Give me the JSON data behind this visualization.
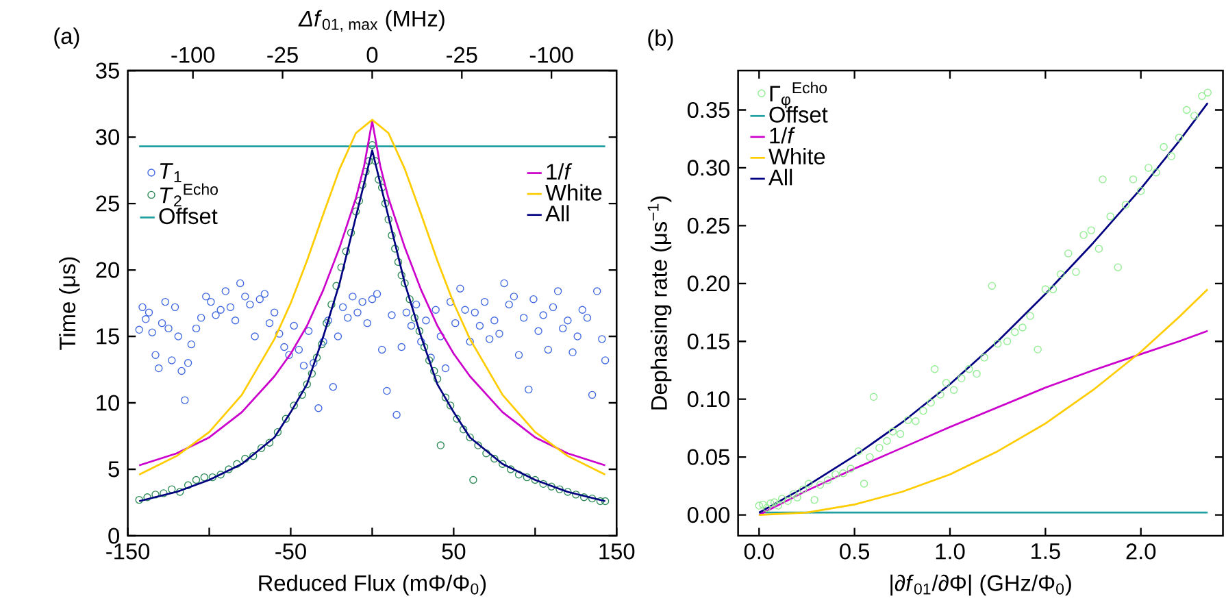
{
  "chart_data": [
    {
      "type": "scatter",
      "annotations": [
        "(a)",
        "-100",
        "-25",
        "0",
        "-25",
        "-100"
      ],
      "xlabel": "Reduced Flux (mΦ/Φ$_{0}$)",
      "ylabel": "Time (μs)",
      "x2label": "*Δf*$_{01, max}$ (MHz)",
      "xlim": [
        -150,
        150
      ],
      "ylim": [
        0,
        35
      ],
      "xticks": [
        -150,
        {
          "value": -100,
          "label": null
        },
        -50,
        {
          "value": 0,
          "label": null
        },
        50,
        {
          "value": 100,
          "label": null
        },
        150
      ],
      "yticks": [
        0,
        5,
        10,
        15,
        20,
        25,
        30,
        35
      ],
      "legend": "top",
      "series": [
        {
          "name": "*T*$_{1}$",
          "color": "#4169e1",
          "x": [
            -143,
            -141,
            -139,
            -137,
            -135,
            -133,
            -131,
            -129,
            -127,
            -125,
            -123,
            -121,
            -119,
            -117,
            -115,
            -113,
            -111,
            -108,
            -105,
            -102,
            -99,
            -96,
            -93,
            -90,
            -87,
            -84,
            -81,
            -78,
            -75,
            -72,
            -69,
            -66,
            -63,
            -60,
            -57,
            -54,
            -51,
            -48,
            -45,
            -42,
            -39,
            -36,
            -33,
            -30,
            -27,
            -24,
            -21,
            -18,
            -15,
            -12,
            -9,
            -6,
            -3,
            0,
            3,
            6,
            9,
            12,
            15,
            18,
            21,
            24,
            27,
            30,
            33,
            36,
            39,
            42,
            45,
            48,
            51,
            54,
            57,
            60,
            63,
            66,
            69,
            72,
            75,
            78,
            81,
            84,
            87,
            90,
            93,
            96,
            99,
            102,
            105,
            108,
            111,
            114,
            117,
            120,
            123,
            126,
            129,
            132,
            135,
            138,
            141,
            143
          ],
          "values": [
            15.5,
            17.2,
            16.3,
            16.8,
            15.3,
            13.6,
            12.6,
            16.0,
            17.6,
            15.6,
            13.2,
            17.2,
            15.0,
            12.4,
            10.2,
            13.0,
            14.4,
            15.6,
            16.4,
            18.0,
            17.6,
            16.6,
            17.0,
            18.4,
            17.2,
            16.2,
            19.0,
            18.0,
            17.4,
            15.0,
            17.8,
            18.2,
            16.0,
            16.8,
            15.2,
            14.2,
            13.6,
            15.8,
            14.0,
            12.8,
            15.4,
            13.0,
            9.6,
            14.6,
            16.2,
            11.2,
            15.0,
            17.2,
            16.4,
            18.0,
            16.8,
            17.6,
            16.0,
            17.8,
            18.2,
            14.0,
            10.9,
            16.6,
            9.1,
            14.2,
            16.8,
            15.8,
            17.4,
            14.6,
            16.2,
            13.4,
            17.0,
            15.0,
            12.6,
            17.6,
            16.0,
            18.6,
            17.0,
            14.6,
            16.8,
            15.8,
            17.6,
            14.8,
            16.2,
            15.2,
            19.0,
            17.4,
            18.0,
            13.6,
            16.4,
            11.0,
            17.8,
            15.4,
            16.6,
            14.0,
            17.2,
            18.4,
            15.6,
            16.2,
            13.8,
            15.0,
            17.0,
            16.4,
            10.6,
            18.4,
            14.8,
            13.2
          ]
        },
        {
          "name": "*T*$_{2}$$^{Echo}$",
          "color": "#2e8b57",
          "x": [
            -143,
            -138,
            -133,
            -128,
            -123,
            -118,
            -113,
            -108,
            -103,
            -98,
            -93,
            -88,
            -83,
            -78,
            -73,
            -68,
            -63,
            -58,
            -53,
            -48,
            -43,
            -40,
            -37,
            -34,
            -31,
            -28,
            -25,
            -22,
            -19,
            -16,
            -13,
            -10,
            -8,
            -6,
            -4,
            -2,
            0,
            2,
            4,
            6,
            8,
            10,
            12,
            14,
            16,
            18,
            20,
            23,
            26,
            29,
            32,
            35,
            38,
            40,
            42,
            45,
            48,
            52,
            56,
            60,
            62,
            65,
            70,
            75,
            80,
            85,
            90,
            95,
            100,
            105,
            110,
            115,
            120,
            125,
            130,
            135,
            140,
            143
          ],
          "values": [
            2.7,
            2.9,
            3.1,
            3.2,
            3.5,
            3.3,
            3.8,
            4.2,
            4.4,
            4.4,
            4.6,
            5.0,
            5.4,
            5.8,
            6.0,
            6.6,
            7.0,
            7.8,
            8.8,
            9.8,
            10.6,
            11.4,
            12.2,
            13.4,
            14.4,
            16.0,
            17.4,
            18.8,
            20.2,
            21.4,
            22.8,
            24.4,
            25.2,
            26.4,
            27.4,
            28.2,
            29.4,
            28.2,
            26.8,
            26.2,
            25.0,
            23.8,
            22.6,
            21.6,
            20.6,
            19.6,
            19.0,
            17.8,
            16.4,
            15.4,
            14.2,
            13.2,
            12.4,
            11.8,
            6.8,
            10.4,
            9.8,
            8.8,
            8.0,
            7.4,
            4.2,
            6.8,
            6.2,
            5.8,
            5.4,
            5.0,
            4.6,
            4.4,
            4.2,
            3.9,
            3.7,
            3.5,
            3.3,
            3.1,
            2.9,
            2.8,
            2.6,
            2.6
          ]
        },
        {
          "name": "Offset",
          "type": "line",
          "color": "#20a0a0",
          "x": [
            -143,
            143
          ],
          "values": [
            29.3,
            29.3
          ]
        },
        {
          "name": "1/*f*",
          "type": "line",
          "color": "#cc00cc",
          "x": [
            -143,
            -120,
            -100,
            -80,
            -60,
            -50,
            -40,
            -30,
            -20,
            -10,
            -5,
            0,
            5,
            10,
            20,
            30,
            40,
            50,
            60,
            80,
            100,
            120,
            143
          ],
          "values": [
            5.3,
            6.2,
            7.4,
            9.3,
            12.0,
            13.7,
            15.8,
            18.5,
            21.7,
            25.4,
            27.8,
            31.2,
            27.8,
            25.4,
            21.7,
            18.5,
            15.8,
            13.7,
            12.0,
            9.3,
            7.4,
            6.2,
            5.3
          ]
        },
        {
          "name": "White",
          "type": "line",
          "color": "#ffcc00",
          "x": [
            -143,
            -120,
            -100,
            -80,
            -60,
            -50,
            -40,
            -30,
            -20,
            -10,
            0,
            10,
            20,
            30,
            40,
            50,
            60,
            80,
            100,
            120,
            143
          ],
          "values": [
            4.6,
            6.0,
            7.8,
            10.6,
            14.8,
            17.5,
            20.7,
            24.2,
            27.6,
            30.3,
            31.3,
            30.3,
            27.6,
            24.2,
            20.7,
            17.5,
            14.8,
            10.6,
            7.8,
            6.0,
            4.6
          ]
        },
        {
          "name": "All",
          "type": "line",
          "color": "#000080",
          "x": [
            -143,
            -120,
            -100,
            -80,
            -60,
            -50,
            -40,
            -30,
            -20,
            -10,
            -5,
            0,
            5,
            10,
            20,
            30,
            40,
            50,
            60,
            80,
            100,
            120,
            143
          ],
          "values": [
            2.6,
            3.3,
            4.2,
            5.4,
            7.4,
            9.3,
            11.4,
            15.0,
            19.0,
            24.0,
            26.5,
            29.0,
            26.5,
            24.0,
            19.0,
            15.0,
            11.4,
            9.3,
            7.4,
            5.4,
            4.2,
            3.3,
            2.6
          ]
        }
      ]
    },
    {
      "type": "scatter",
      "annotations": [
        "(b)"
      ],
      "xlabel": "|∂*f*$_{01}$/∂Φ| (GHz/Φ$_{0}$)",
      "ylabel": "Dephasing rate (μs$^{−1}$)",
      "xlim": [
        -0.11,
        2.43
      ],
      "ylim": [
        -0.018,
        0.384
      ],
      "xticks": [
        {
          "value": 0,
          "label": "0.0"
        },
        0.5,
        {
          "value": 1,
          "label": "1.0"
        },
        1.5,
        {
          "value": 2,
          "label": "2.0"
        }
      ],
      "yticks": [
        {
          "value": 0,
          "label": "0.00"
        },
        {
          "value": 0.05,
          "label": "0.05"
        },
        {
          "value": 0.1,
          "label": "0.10"
        },
        {
          "value": 0.15,
          "label": "0.15"
        },
        {
          "value": 0.2,
          "label": "0.20"
        },
        {
          "value": 0.25,
          "label": "0.25"
        },
        {
          "value": 0.3,
          "label": "0.30"
        },
        {
          "value": 0.35,
          "label": "0.35"
        }
      ],
      "legend": "top left",
      "series": [
        {
          "name": "Γ$_{φ}$$^{Echo}$",
          "color": "#90ee90",
          "x": [
            0.0,
            0.02,
            0.04,
            0.06,
            0.08,
            0.1,
            0.12,
            0.15,
            0.18,
            0.2,
            0.23,
            0.26,
            0.29,
            0.32,
            0.36,
            0.4,
            0.44,
            0.48,
            0.52,
            0.55,
            0.58,
            0.6,
            0.63,
            0.67,
            0.7,
            0.74,
            0.78,
            0.82,
            0.86,
            0.9,
            0.92,
            0.95,
            0.98,
            1.02,
            1.06,
            1.1,
            1.14,
            1.18,
            1.22,
            1.25,
            1.3,
            1.34,
            1.38,
            1.42,
            1.46,
            1.5,
            1.54,
            1.58,
            1.62,
            1.66,
            1.7,
            1.74,
            1.78,
            1.8,
            1.84,
            1.88,
            1.92,
            1.96,
            2.0,
            2.04,
            2.08,
            2.12,
            2.16,
            2.2,
            2.24,
            2.28,
            2.32,
            2.35
          ],
          "values": [
            0.008,
            0.009,
            0.006,
            0.01,
            0.011,
            0.008,
            0.014,
            0.012,
            0.018,
            0.015,
            0.022,
            0.027,
            0.013,
            0.026,
            0.03,
            0.035,
            0.036,
            0.04,
            0.055,
            0.027,
            0.05,
            0.102,
            0.058,
            0.064,
            0.072,
            0.07,
            0.082,
            0.081,
            0.09,
            0.097,
            0.126,
            0.104,
            0.114,
            0.108,
            0.118,
            0.126,
            0.122,
            0.136,
            0.198,
            0.148,
            0.15,
            0.158,
            0.162,
            0.172,
            0.143,
            0.195,
            0.195,
            0.208,
            0.226,
            0.21,
            0.242,
            0.246,
            0.23,
            0.29,
            0.258,
            0.214,
            0.268,
            0.29,
            0.28,
            0.3,
            0.296,
            0.318,
            0.31,
            0.326,
            0.35,
            0.345,
            0.362,
            0.365
          ]
        },
        {
          "name": "Offset",
          "type": "line",
          "color": "#20a0a0",
          "x": [
            0,
            2.35
          ],
          "values": [
            0.002,
            0.002
          ]
        },
        {
          "name": "1/*f*",
          "type": "line",
          "color": "#cc00cc",
          "x": [
            0,
            0.25,
            0.5,
            0.75,
            1.0,
            1.25,
            1.5,
            1.75,
            2.0,
            2.2,
            2.35
          ],
          "values": [
            0,
            0.021,
            0.04,
            0.058,
            0.076,
            0.093,
            0.11,
            0.125,
            0.139,
            0.15,
            0.159
          ]
        },
        {
          "name": "White",
          "type": "line",
          "color": "#ffcc00",
          "x": [
            0,
            0.25,
            0.5,
            0.75,
            1.0,
            1.25,
            1.5,
            1.75,
            2.0,
            2.2,
            2.35
          ],
          "values": [
            0,
            0.002,
            0.009,
            0.02,
            0.035,
            0.055,
            0.079,
            0.108,
            0.141,
            0.171,
            0.195
          ]
        },
        {
          "name": "All",
          "type": "line",
          "color": "#000080",
          "x": [
            0,
            0.25,
            0.5,
            0.75,
            1.0,
            1.25,
            1.5,
            1.75,
            2.0,
            2.2,
            2.35
          ],
          "values": [
            0.002,
            0.025,
            0.051,
            0.08,
            0.113,
            0.15,
            0.191,
            0.235,
            0.282,
            0.323,
            0.356
          ]
        }
      ]
    }
  ]
}
